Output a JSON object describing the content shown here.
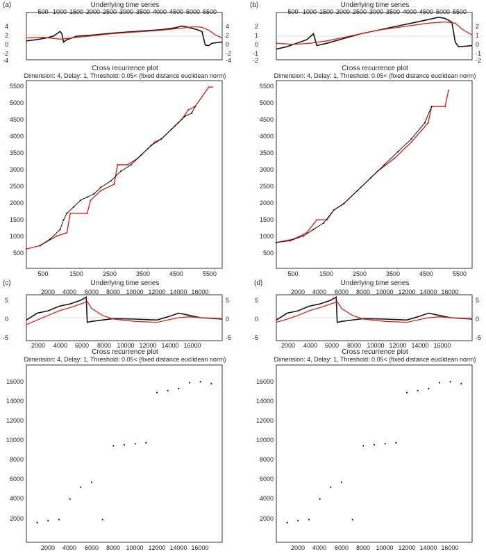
{
  "figure": {
    "panels": [
      {
        "label": "(a)",
        "top_title": "Underlying time series",
        "crp_title": "Cross recurrence plot",
        "crp_subtitle": "Dimension: 4, Delay: 1, Threshold: 0.05< (fixed distance euclidean norm)",
        "top_xticks": [
          "500",
          "1000",
          "1500",
          "2000",
          "2500",
          "3000",
          "3500",
          "4000",
          "4500",
          "5000",
          "5500"
        ],
        "top_yticks_left": [
          "4",
          "2",
          "0",
          "-2",
          "-4"
        ],
        "top_yticks_right": [
          "4",
          "2",
          "0",
          "-2",
          "-4"
        ],
        "crp_yticks": [
          "5500",
          "5000",
          "4500",
          "4000",
          "3500",
          "3000",
          "2500",
          "2000",
          "1500",
          "1000",
          "500"
        ],
        "crp_xticks": [
          "500",
          "1500",
          "2500",
          "3500",
          "4500",
          "5500"
        ]
      },
      {
        "label": "(b)",
        "top_title": "Underlying time series",
        "crp_title": "Cross recurrence plot",
        "crp_subtitle": "Dimension: 4, Delay: 1, Threshold: 0.05< (fixed distance euclidean norm)",
        "top_xticks": [
          "500",
          "1000",
          "1500",
          "2000",
          "2500",
          "3000",
          "3500",
          "4000",
          "4500",
          "5000",
          "5500"
        ],
        "top_yticks_left": [
          "2",
          "1",
          "0",
          "-1",
          "-2"
        ],
        "top_yticks_right": [
          "2",
          "1",
          "0",
          "-1",
          "-2"
        ],
        "crp_yticks": [
          "5500",
          "5000",
          "4500",
          "4000",
          "3500",
          "3000",
          "2500",
          "2000",
          "1500",
          "1000",
          "500"
        ],
        "crp_xticks": [
          "500",
          "1500",
          "2500",
          "3500",
          "4500",
          "5500"
        ]
      },
      {
        "label": "(c)",
        "top_title": "Underlying time series",
        "crp_title": "Cross recurrence plot",
        "crp_subtitle": "Dimension: 4, Delay: 1, Threshold: 0.05< (fixed distance euclidean norm)",
        "top_xticks_top": [
          "2000",
          "4000",
          "6000",
          "8000",
          "10000",
          "12000",
          "14000",
          "16000"
        ],
        "top_xticks_bottom": [
          "2000",
          "4000",
          "6000",
          "8000",
          "10000",
          "12000",
          "14000",
          "16000"
        ],
        "top_yticks_left": [
          "5",
          "0",
          "-5"
        ],
        "top_yticks_right": [
          "5",
          "0",
          "-5"
        ],
        "crp_yticks": [
          "16000",
          "14000",
          "12000",
          "10000",
          "8000",
          "6000",
          "4000",
          "2000"
        ],
        "crp_xticks": [
          "2000",
          "4000",
          "6000",
          "8000",
          "10000",
          "12000",
          "14000",
          "16000"
        ]
      },
      {
        "label": "(d)",
        "top_title": "Underlying time series",
        "crp_title": "Cross recurrence plot",
        "crp_subtitle": "Dimension: 4, Delay: 1, Threshold: 0.05< (fixed distance euclidean norm)",
        "top_xticks_top": [
          "2000",
          "4000",
          "6000",
          "8000",
          "10000",
          "12000",
          "14000",
          "16000"
        ],
        "top_xticks_bottom": [
          "2000",
          "4000",
          "6000",
          "8000",
          "10000",
          "12000",
          "14000",
          "16000"
        ],
        "top_yticks_left": [
          "5",
          "0",
          "-5"
        ],
        "top_yticks_right": [
          "5",
          "0",
          "-5"
        ],
        "crp_yticks": [
          "16000",
          "14000",
          "12000",
          "10000",
          "8000",
          "6000",
          "4000",
          "2000"
        ],
        "crp_xticks": [
          "2000",
          "4000",
          "6000",
          "8000",
          "10000",
          "12000",
          "14000",
          "16000"
        ]
      }
    ]
  },
  "colors": {
    "series_a": "#111111",
    "series_b": "#d0281e",
    "axis": "#333333"
  },
  "chart_data": [
    {
      "type": "line",
      "panel": "(a)",
      "title": "Underlying time series",
      "xlim": [
        0,
        5800
      ],
      "ylim": [
        -4,
        4
      ],
      "series": [
        {
          "color": "#111111",
          "x": [
            0,
            300,
            600,
            800,
            1000,
            1050,
            1100,
            1200,
            1500,
            2000,
            2500,
            3000,
            3500,
            4000,
            4400,
            4600,
            4800,
            5000,
            5200,
            5300,
            5400,
            5500,
            5800
          ],
          "y": [
            -0.8,
            -0.6,
            -0.3,
            0.0,
            0.8,
            0.4,
            -1.0,
            -0.6,
            0.0,
            0.2,
            0.5,
            0.7,
            0.9,
            1.1,
            1.4,
            1.7,
            1.5,
            1.2,
            0.8,
            -1.5,
            -1.6,
            -1.2,
            -1.0
          ]
        },
        {
          "color": "#d0281e",
          "x": [
            0,
            500,
            1000,
            1500,
            2000,
            2500,
            3000,
            3500,
            4000,
            4500,
            5000,
            5200,
            5400,
            5600,
            5800
          ],
          "y": [
            -0.3,
            -0.2,
            -0.5,
            -0.2,
            0.1,
            0.4,
            0.6,
            0.8,
            1.0,
            1.3,
            1.6,
            1.5,
            1.0,
            0.2,
            -0.3
          ]
        }
      ]
    },
    {
      "type": "line",
      "panel": "(b)",
      "title": "Underlying time series",
      "xlim": [
        0,
        5800
      ],
      "ylim": [
        -2,
        2
      ],
      "series": [
        {
          "color": "#111111",
          "x": [
            0,
            300,
            600,
            900,
            1100,
            1200,
            1500,
            2000,
            2500,
            3000,
            3500,
            4000,
            4500,
            4800,
            5000,
            5200,
            5300,
            5400,
            5800
          ],
          "y": [
            -1.1,
            -0.9,
            -0.6,
            -0.3,
            0.2,
            -0.8,
            -0.6,
            -0.2,
            0.2,
            0.5,
            0.8,
            1.1,
            1.4,
            1.6,
            1.5,
            1.2,
            -0.5,
            -0.9,
            -0.8
          ]
        },
        {
          "color": "#d0281e",
          "x": [
            0,
            500,
            1000,
            1500,
            2000,
            2500,
            3000,
            3500,
            4000,
            4500,
            5000,
            5300,
            5500,
            5800
          ],
          "y": [
            -0.6,
            -0.7,
            -0.6,
            -0.4,
            -0.1,
            0.2,
            0.5,
            0.7,
            0.9,
            1.1,
            1.2,
            1.1,
            0.6,
            0.1
          ]
        }
      ]
    },
    {
      "type": "line",
      "panel": "(c)",
      "title": "Underlying time series",
      "xlim": [
        0,
        18000
      ],
      "ylim": [
        -5,
        5
      ],
      "series": [
        {
          "color": "#111111",
          "x": [
            0,
            1000,
            2000,
            3000,
            4000,
            5000,
            5500,
            5600,
            6000,
            8000,
            10000,
            12000,
            13000,
            14000,
            15000,
            16000,
            18000
          ],
          "y": [
            -0.5,
            1.0,
            1.5,
            2.5,
            3.0,
            3.8,
            4.5,
            -1.0,
            -0.8,
            -0.2,
            -0.3,
            -0.5,
            0.2,
            1.0,
            0.5,
            0.0,
            -0.3
          ]
        },
        {
          "color": "#d0281e",
          "x": [
            0,
            1000,
            2000,
            3000,
            4000,
            5000,
            5600,
            6000,
            7000,
            8000,
            10000,
            12000,
            13000,
            14000,
            15000,
            16000,
            18000
          ],
          "y": [
            -1.5,
            -0.5,
            0.5,
            1.5,
            2.2,
            3.0,
            3.5,
            2.0,
            0.5,
            -0.3,
            -0.8,
            -1.0,
            -0.5,
            0.0,
            0.2,
            0.0,
            -0.2
          ]
        }
      ]
    },
    {
      "type": "line",
      "panel": "(d)",
      "title": "Underlying time series",
      "xlim": [
        0,
        18000
      ],
      "ylim": [
        -5,
        5
      ],
      "series": [
        {
          "color": "#111111",
          "x": [
            0,
            1000,
            2000,
            3000,
            4000,
            5000,
            5500,
            5600,
            6000,
            8000,
            10000,
            12000,
            13000,
            14000,
            15000,
            16000,
            18000
          ],
          "y": [
            -0.5,
            1.0,
            1.5,
            2.5,
            3.0,
            3.8,
            4.5,
            -1.0,
            -0.8,
            -0.2,
            -0.3,
            -0.5,
            0.2,
            1.0,
            0.5,
            0.0,
            -0.3
          ]
        },
        {
          "color": "#d0281e",
          "x": [
            0,
            1000,
            2000,
            3000,
            4000,
            5000,
            5600,
            6000,
            7000,
            8000,
            10000,
            12000,
            13000,
            14000,
            15000,
            16000,
            18000
          ],
          "y": [
            -1.0,
            -0.3,
            0.5,
            1.5,
            2.2,
            3.0,
            3.5,
            2.0,
            0.5,
            -0.3,
            -0.8,
            -1.0,
            -0.5,
            0.0,
            0.2,
            0.0,
            -0.2
          ]
        }
      ]
    },
    {
      "type": "scatter",
      "panel": "(a)",
      "title": "Cross recurrence plot",
      "xlim": [
        0,
        5800
      ],
      "ylim": [
        0,
        5800
      ],
      "series": [
        {
          "color": "#d0281e",
          "x": [
            0,
            400,
            900,
            1200,
            1300,
            1800,
            1900,
            2200,
            2600,
            2700,
            3000,
            3300,
            3600,
            3800,
            4000,
            4400,
            4600,
            4800,
            5000,
            5400,
            5500
          ],
          "y": [
            600,
            700,
            1000,
            1100,
            1700,
            1700,
            2100,
            2400,
            2600,
            3200,
            3200,
            3400,
            3700,
            3900,
            4000,
            4400,
            4600,
            4900,
            5000,
            5600,
            5600
          ]
        },
        {
          "color": "#111111",
          "x": [
            400,
            700,
            1000,
            1100,
            1200,
            1400,
            1600,
            1800,
            2000,
            2200,
            2500,
            2800,
            3100,
            3400,
            3700,
            4000,
            4300,
            4500,
            4700,
            4900,
            5000
          ],
          "y": [
            700,
            900,
            1200,
            1500,
            1700,
            1900,
            2100,
            2200,
            2300,
            2500,
            2700,
            3000,
            3200,
            3500,
            3800,
            4000,
            4300,
            4500,
            4700,
            4800,
            5000
          ]
        }
      ]
    },
    {
      "type": "scatter",
      "panel": "(b)",
      "title": "Cross recurrence plot",
      "xlim": [
        0,
        5800
      ],
      "ylim": [
        0,
        5800
      ],
      "series": [
        {
          "color": "#d0281e",
          "x": [
            0,
            500,
            900,
            1200,
            1500,
            1700,
            2000,
            2500,
            3000,
            3500,
            4000,
            4500,
            4600,
            5000,
            5100
          ],
          "y": [
            800,
            900,
            1100,
            1500,
            1500,
            1800,
            2000,
            2500,
            3000,
            3400,
            3900,
            4500,
            5000,
            5000,
            5500
          ]
        },
        {
          "color": "#111111",
          "x": [
            0,
            400,
            800,
            1100,
            1400,
            1700,
            2000,
            2400,
            2800,
            3200,
            3600,
            4000,
            4400,
            4600
          ],
          "y": [
            800,
            850,
            1000,
            1200,
            1400,
            1800,
            2000,
            2400,
            2800,
            3200,
            3600,
            4000,
            4500,
            5000
          ]
        }
      ]
    },
    {
      "type": "scatter",
      "panel": "(c)",
      "title": "Cross recurrence plot",
      "xlim": [
        0,
        18000
      ],
      "ylim": [
        0,
        18000
      ],
      "series": [
        {
          "color": "#111111",
          "x": [
            1000,
            2000,
            3000,
            4000,
            5000,
            6000,
            7000,
            8000,
            9000,
            10000,
            11000,
            12000,
            13000,
            14000,
            15000,
            16000,
            17000
          ],
          "y": [
            2000,
            2200,
            2300,
            4400,
            5600,
            6100,
            2300,
            9800,
            9900,
            10000,
            10100,
            15200,
            15400,
            15600,
            16200,
            16300,
            16100
          ]
        }
      ]
    },
    {
      "type": "scatter",
      "panel": "(d)",
      "title": "Cross recurrence plot",
      "xlim": [
        0,
        18000
      ],
      "ylim": [
        0,
        18000
      ],
      "series": [
        {
          "color": "#111111",
          "x": [
            1000,
            2000,
            3000,
            4000,
            5000,
            6000,
            7000,
            8000,
            9000,
            10000,
            11000,
            12000,
            13000,
            14000,
            15000,
            16000,
            17000
          ],
          "y": [
            2000,
            2200,
            2300,
            4400,
            5600,
            6100,
            2300,
            9800,
            9900,
            10000,
            10100,
            15200,
            15400,
            15600,
            16200,
            16300,
            16100
          ]
        }
      ]
    }
  ]
}
